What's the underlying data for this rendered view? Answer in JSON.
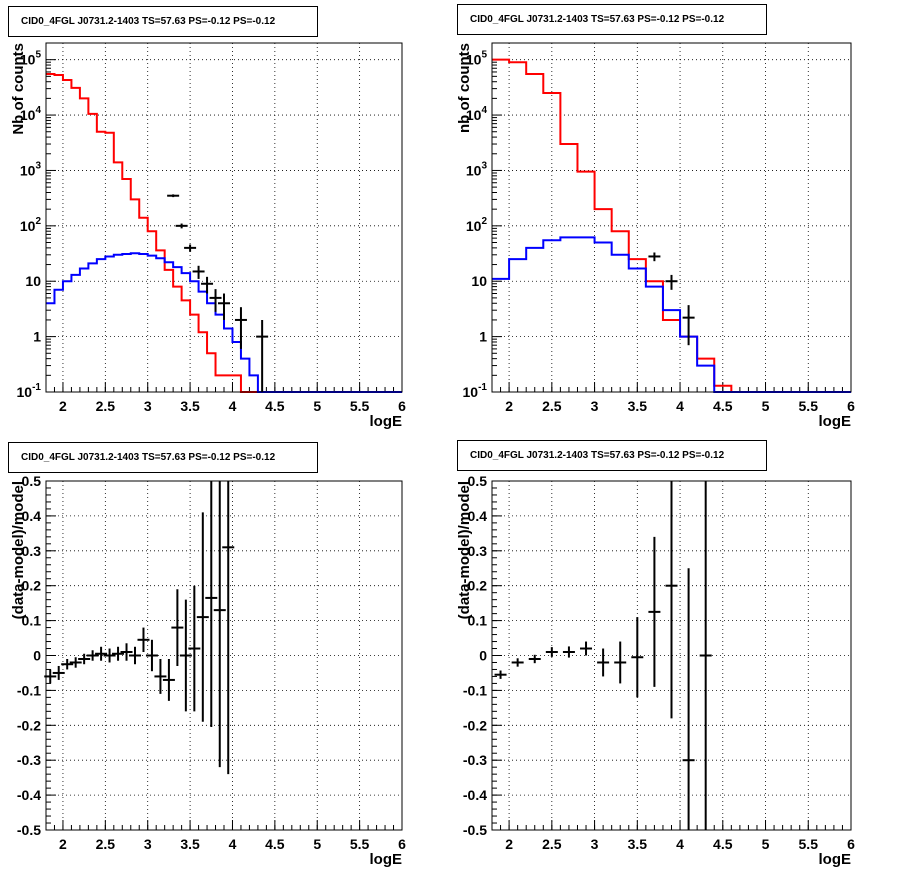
{
  "chart_data": [
    {
      "type": "histogram",
      "title": "CID0_4FGL J0731.2-1403 TS=57.63 PS=-0.12 PS=-0.12",
      "xlabel": "logE",
      "ylabel": "Nb of counts",
      "xlim": [
        1.8,
        6
      ],
      "ylim": [
        0.1,
        200000
      ],
      "log_y": true,
      "grid": true,
      "x_ticks": [
        "2",
        "2.5",
        "3",
        "3.5",
        "4",
        "4.5",
        "5",
        "5.5",
        "6"
      ],
      "y_ticks": [
        "10^-1",
        "1",
        "10",
        "10^2",
        "10^3",
        "10^4",
        "10^5"
      ],
      "bin_edges": [
        1.8,
        1.9,
        2.0,
        2.1,
        2.2,
        2.3,
        2.4,
        2.5,
        2.6,
        2.7,
        2.8,
        2.9,
        3.0,
        3.1,
        3.2,
        3.3,
        3.4,
        3.5,
        3.6,
        3.7,
        3.8,
        3.9,
        4.0,
        4.1,
        4.2,
        4.3,
        4.4,
        4.5,
        4.6,
        4.7,
        4.8,
        4.9,
        5.0,
        5.1,
        5.2,
        5.3,
        5.4,
        5.5,
        5.6,
        5.7,
        5.8,
        5.9,
        6.0
      ],
      "series": [
        {
          "color": "#ff0000",
          "values": [
            55000,
            53000,
            43000,
            31000,
            20000,
            10500,
            5000,
            4800,
            1400,
            700,
            300,
            140,
            80,
            36,
            16,
            8,
            4.5,
            2.5,
            1.2,
            0.5,
            0.2,
            0.2,
            0.2,
            0.1,
            0.1,
            0.1,
            0.1,
            0.1,
            0.1,
            0.1,
            0.1,
            0.1,
            0.1,
            0.1,
            0.1,
            0.1,
            0.1,
            0.1,
            0.1,
            0.1,
            0.1,
            0.1
          ]
        },
        {
          "color": "#0000ff",
          "values": [
            4,
            7,
            10,
            13,
            17,
            21,
            25,
            28,
            30,
            31,
            32,
            31,
            29,
            26,
            22,
            18,
            14,
            10,
            6.5,
            4,
            2.5,
            1.4,
            0.8,
            0.4,
            0.2,
            0.1,
            0.1,
            0.1,
            0.1,
            0.1,
            0.1,
            0.1,
            0.1,
            0.1,
            0.1,
            0.1,
            0.1,
            0.1,
            0.1,
            0.1,
            0.1,
            0.1
          ]
        }
      ],
      "data_points": [
        {
          "x": 3.3,
          "y": 350,
          "err": 20
        },
        {
          "x": 3.4,
          "y": 100,
          "err": 10
        },
        {
          "x": 3.5,
          "y": 40,
          "err": 6
        },
        {
          "x": 3.6,
          "y": 15,
          "err": 4
        },
        {
          "x": 3.7,
          "y": 9,
          "err": 3
        },
        {
          "x": 3.8,
          "y": 5,
          "err": 2.2
        },
        {
          "x": 3.9,
          "y": 4,
          "err": 2
        },
        {
          "x": 4.1,
          "y": 2,
          "err": 1.4
        },
        {
          "x": 4.35,
          "y": 1,
          "err": 1
        }
      ]
    },
    {
      "type": "histogram",
      "title": "CID0_4FGL J0731.2-1403 TS=57.63 PS=-0.12 PS=-0.12",
      "xlabel": "logE",
      "ylabel": "nb of counts",
      "xlim": [
        1.8,
        6
      ],
      "ylim": [
        0.1,
        200000
      ],
      "log_y": true,
      "grid": true,
      "x_ticks": [
        "2",
        "2.5",
        "3",
        "3.5",
        "4",
        "4.5",
        "5",
        "5.5",
        "6"
      ],
      "y_ticks": [
        "10^-1",
        "1",
        "10",
        "10^2",
        "10^3",
        "10^4",
        "10^5"
      ],
      "bin_edges": [
        1.8,
        2.0,
        2.2,
        2.4,
        2.6,
        2.8,
        3.0,
        3.2,
        3.4,
        3.6,
        3.8,
        4.0,
        4.2,
        4.4,
        4.6,
        4.8,
        5.0,
        5.2,
        5.4,
        5.6,
        5.8,
        6.0
      ],
      "series": [
        {
          "color": "#ff0000",
          "values": [
            100000,
            90000,
            55000,
            25000,
            3000,
            950,
            200,
            80,
            25,
            10,
            2,
            1,
            0.4,
            0.13,
            0.1,
            0.1,
            0.1,
            0.1,
            0.1,
            0.1,
            0.1
          ]
        },
        {
          "color": "#0000ff",
          "values": [
            11,
            25,
            40,
            55,
            62,
            62,
            50,
            30,
            17,
            8,
            3,
            1,
            0.3,
            0.1,
            0.1,
            0.1,
            0.1,
            0.1,
            0.1,
            0.1,
            0.1
          ]
        }
      ],
      "data_points": [
        {
          "x": 3.7,
          "y": 28,
          "err": 5
        },
        {
          "x": 3.9,
          "y": 10,
          "err": 3
        },
        {
          "x": 4.1,
          "y": 2.2,
          "err": 1.5
        }
      ]
    },
    {
      "type": "scatter",
      "title": "CID0_4FGL J0731.2-1403 TS=57.63 PS=-0.12 PS=-0.12",
      "xlabel": "logE",
      "ylabel": "(data-model)/model",
      "xlim": [
        1.8,
        6
      ],
      "ylim": [
        -0.5,
        0.5
      ],
      "grid": true,
      "x_ticks": [
        "2",
        "2.5",
        "3",
        "3.5",
        "4",
        "4.5",
        "5",
        "5.5",
        "6"
      ],
      "y_ticks": [
        "-0.5",
        "-0.4",
        "-0.3",
        "-0.2",
        "-0.1",
        "0",
        "0.1",
        "0.2",
        "0.3",
        "0.4",
        "0.5"
      ],
      "points": [
        {
          "x": 1.85,
          "y": -0.06,
          "err": 0.02
        },
        {
          "x": 1.95,
          "y": -0.05,
          "err": 0.02
        },
        {
          "x": 2.05,
          "y": -0.025,
          "err": 0.015
        },
        {
          "x": 2.15,
          "y": -0.02,
          "err": 0.015
        },
        {
          "x": 2.25,
          "y": -0.01,
          "err": 0.015
        },
        {
          "x": 2.35,
          "y": 0.0,
          "err": 0.015
        },
        {
          "x": 2.45,
          "y": 0.005,
          "err": 0.02
        },
        {
          "x": 2.55,
          "y": 0.0,
          "err": 0.02
        },
        {
          "x": 2.65,
          "y": 0.005,
          "err": 0.02
        },
        {
          "x": 2.75,
          "y": 0.01,
          "err": 0.025
        },
        {
          "x": 2.85,
          "y": 0.0,
          "err": 0.025
        },
        {
          "x": 2.95,
          "y": 0.045,
          "err": 0.035
        },
        {
          "x": 3.05,
          "y": 0.0,
          "err": 0.045
        },
        {
          "x": 3.15,
          "y": -0.06,
          "err": 0.05
        },
        {
          "x": 3.25,
          "y": -0.07,
          "err": 0.06
        },
        {
          "x": 3.35,
          "y": 0.08,
          "err": 0.11
        },
        {
          "x": 3.45,
          "y": 0.0,
          "err": 0.16
        },
        {
          "x": 3.55,
          "y": 0.02,
          "err": 0.18
        },
        {
          "x": 3.65,
          "y": 0.11,
          "err": 0.3
        },
        {
          "x": 3.75,
          "y": 0.165,
          "err": 0.37
        },
        {
          "x": 3.85,
          "y": 0.13,
          "err": 0.45
        },
        {
          "x": 3.95,
          "y": 0.31,
          "err": 0.65
        }
      ]
    },
    {
      "type": "scatter",
      "title": "CID0_4FGL J0731.2-1403 TS=57.63 PS=-0.12 PS=-0.12",
      "xlabel": "logE",
      "ylabel": "(data-model)/model",
      "xlim": [
        1.8,
        6
      ],
      "ylim": [
        -0.5,
        0.5
      ],
      "grid": true,
      "x_ticks": [
        "2",
        "2.5",
        "3",
        "3.5",
        "4",
        "4.5",
        "5",
        "5.5",
        "6"
      ],
      "y_ticks": [
        "-0.5",
        "-0.4",
        "-0.3",
        "-0.2",
        "-0.1",
        "0",
        "0.1",
        "0.2",
        "0.3",
        "0.4",
        "0.5"
      ],
      "points": [
        {
          "x": 1.9,
          "y": -0.055,
          "err": 0.012
        },
        {
          "x": 2.1,
          "y": -0.02,
          "err": 0.012
        },
        {
          "x": 2.3,
          "y": -0.01,
          "err": 0.012
        },
        {
          "x": 2.5,
          "y": 0.01,
          "err": 0.014
        },
        {
          "x": 2.7,
          "y": 0.01,
          "err": 0.016
        },
        {
          "x": 2.9,
          "y": 0.02,
          "err": 0.02
        },
        {
          "x": 3.1,
          "y": -0.02,
          "err": 0.04
        },
        {
          "x": 3.3,
          "y": -0.02,
          "err": 0.06
        },
        {
          "x": 3.5,
          "y": -0.005,
          "err": 0.115
        },
        {
          "x": 3.7,
          "y": 0.125,
          "err": 0.215
        },
        {
          "x": 3.9,
          "y": 0.2,
          "err": 0.38
        },
        {
          "x": 4.1,
          "y": -0.3,
          "err": 0.55
        },
        {
          "x": 4.3,
          "y": 0.0,
          "err": 0.6
        }
      ]
    }
  ]
}
